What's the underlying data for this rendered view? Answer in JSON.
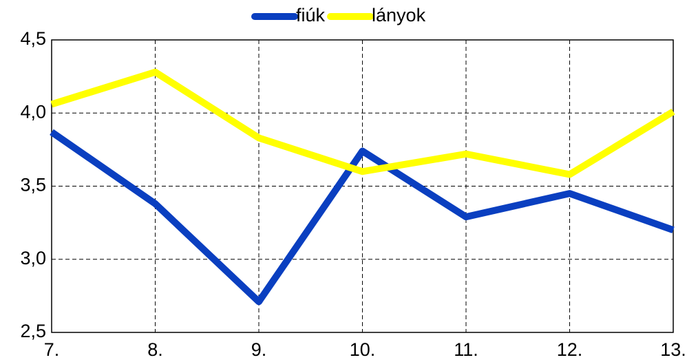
{
  "chart_data": {
    "type": "line",
    "categories": [
      "7.",
      "8.",
      "9.",
      "10.",
      "11.",
      "12.",
      "13."
    ],
    "series": [
      {
        "name": "fiúk",
        "color": "#0a3fc0",
        "values": [
          3.87,
          3.38,
          2.71,
          3.74,
          3.29,
          3.45,
          3.2
        ]
      },
      {
        "name": "lányok",
        "color": "#ffff00",
        "values": [
          4.06,
          4.28,
          3.83,
          3.6,
          3.72,
          3.58,
          4.01
        ]
      }
    ],
    "ylim": [
      2.5,
      4.5
    ],
    "yticks": [
      {
        "value": 2.5,
        "label": "2,5"
      },
      {
        "value": 3,
        "label": "3,0"
      },
      {
        "value": 3.5,
        "label": "3,5"
      },
      {
        "value": 4,
        "label": "4,0"
      },
      {
        "value": 4.5,
        "label": "4,5"
      }
    ],
    "grid": true,
    "legend": "top"
  }
}
